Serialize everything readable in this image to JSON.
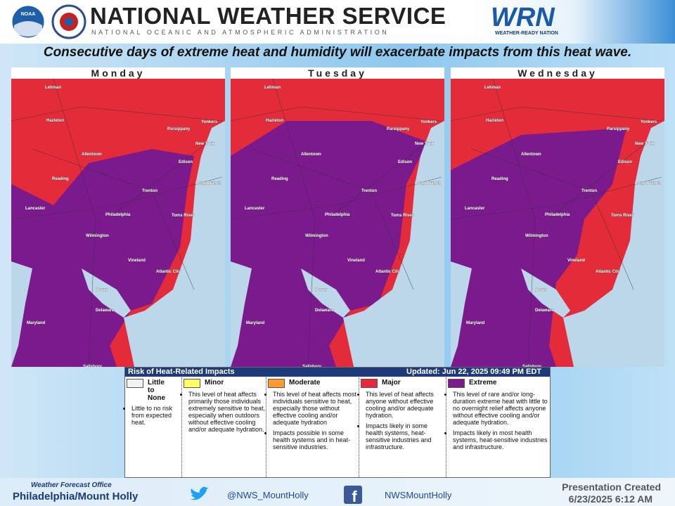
{
  "header": {
    "title": "NATIONAL WEATHER SERVICE",
    "subtitle": "NATIONAL OCEANIC AND ATMOSPHERIC ADMINISTRATION",
    "noaa_logo": "NOAA",
    "wrn_logo": "WRN",
    "wrn_tagline": "WEATHER-READY NATION"
  },
  "headline": "Consecutive days of extreme heat and humidity will exacerbate impacts from this heat wave.",
  "panels": [
    "Monday",
    "Tuesday",
    "Wednesday"
  ],
  "map_labels": [
    "Lehman",
    "Hazleton",
    "Parsippany",
    "Yonkers",
    "New York",
    "Allentown",
    "Edison",
    "Reading",
    "Long Branch",
    "Trenton",
    "Lancaster",
    "Philadelphia",
    "Toms River",
    "Wilmington",
    "Vineland",
    "Atlantic City",
    "Dover",
    "Delaware",
    "Maryland",
    "Salisbury"
  ],
  "legend": {
    "title": "Risk of Heat-Related Impacts",
    "updated": "Updated: Jun 22, 2025 09:49 PM EDT",
    "levels": [
      {
        "name": "Little to None",
        "color": "#f2f2f2",
        "bullets": [
          "Little to no risk from expected heat."
        ]
      },
      {
        "name": "Minor",
        "color": "#ffff66",
        "bullets": [
          "This level of heat affects primarily those individuals extremely sensitive to heat, especially when outdoors without effective cooling and/or adequate hydration."
        ]
      },
      {
        "name": "Moderate",
        "color": "#ff9933",
        "bullets": [
          "This level of heat affects most individuals sensitive to heat, especially those without effective cooling and/or adequate hydration",
          "Impacts possible in some health systems and in heat-sensitive industries."
        ]
      },
      {
        "name": "Major",
        "color": "#e8283c",
        "bullets": [
          "This level of heat affects anyone without effective cooling and/or adequate hydration.",
          "Impacts likely in some health systems, heat-sensitive industries and infrastructure."
        ]
      },
      {
        "name": "Extreme",
        "color": "#7a1a8c",
        "bullets": [
          "This level of rare and/or long-duration extreme heat with little to no overnight relief affects anyone without effective cooling and/or adequate hydration.",
          "Impacts likely in most health systems, heat-sensitive industries and infrastructure."
        ]
      }
    ]
  },
  "footer": {
    "office_label": "Weather Forecast Office",
    "office": "Philadelphia/Mount Holly",
    "twitter": "@NWS_MountHolly",
    "facebook": "NWSMountHolly",
    "created_label": "Presentation Created",
    "created": "6/23/2025 6:12 AM"
  }
}
